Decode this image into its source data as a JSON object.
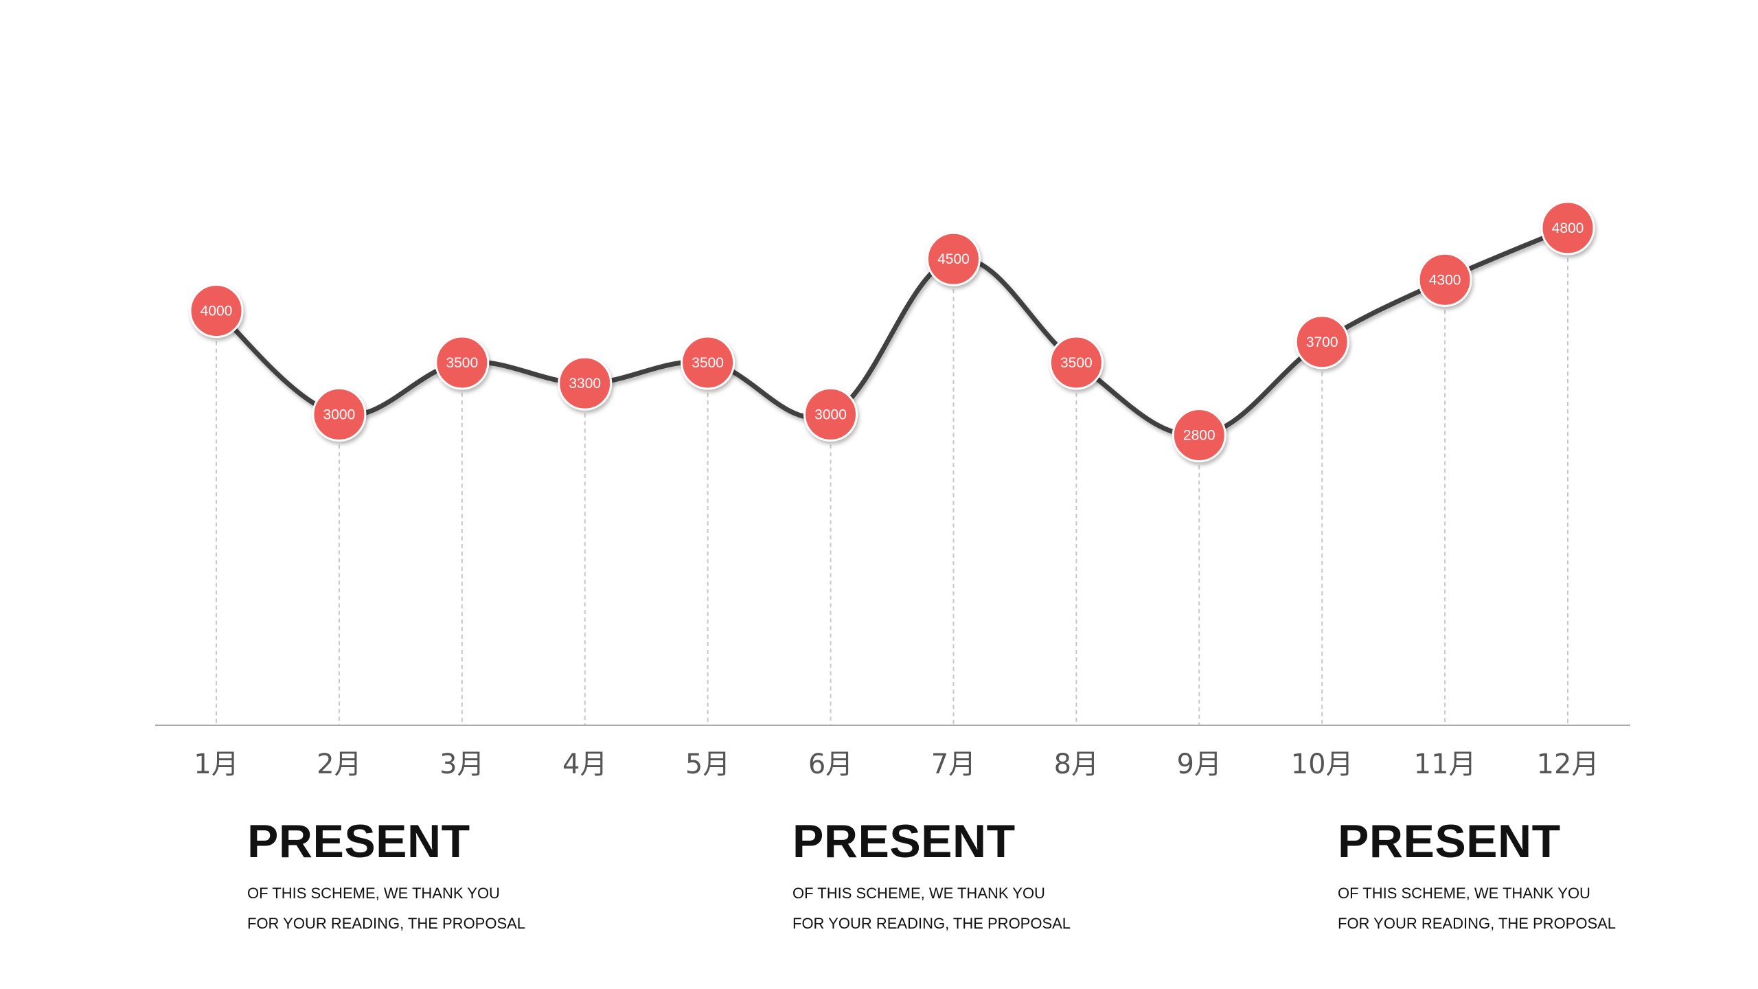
{
  "colors": {
    "marker": "#ef5d5a",
    "line": "#404040",
    "axis": "#aaaaaa",
    "dropline": "#c8c8c8",
    "text": "#111111"
  },
  "chart_data": {
    "type": "line",
    "categories": [
      "1月",
      "2月",
      "3月",
      "4月",
      "5月",
      "6月",
      "7月",
      "8月",
      "9月",
      "10月",
      "11月",
      "12月"
    ],
    "series": [
      {
        "values": [
          4000,
          3000,
          3500,
          3300,
          3500,
          3000,
          4500,
          3500,
          2800,
          3700,
          4300,
          4800
        ]
      }
    ],
    "data_labels": [
      "4000",
      "3000",
      "3500",
      "3300",
      "3500",
      "3000",
      "4500",
      "3500",
      "2800",
      "3700",
      "4300",
      "4800"
    ],
    "smooth": true,
    "markers": "circle",
    "ylim": [
      0,
      7000
    ],
    "y_axis_visible": false,
    "grid": false,
    "droplines": true,
    "legend": "none"
  },
  "blocks": [
    {
      "title": "PRESENT",
      "line1": "OF THIS SCHEME, WE THANK YOU",
      "line2": "FOR YOUR READING, THE PROPOSAL"
    },
    {
      "title": "PRESENT",
      "line1": "OF THIS SCHEME, WE THANK YOU",
      "line2": "FOR YOUR READING, THE PROPOSAL"
    },
    {
      "title": "PRESENT",
      "line1": "OF THIS SCHEME, WE THANK YOU",
      "line2": "FOR YOUR READING, THE PROPOSAL"
    }
  ]
}
